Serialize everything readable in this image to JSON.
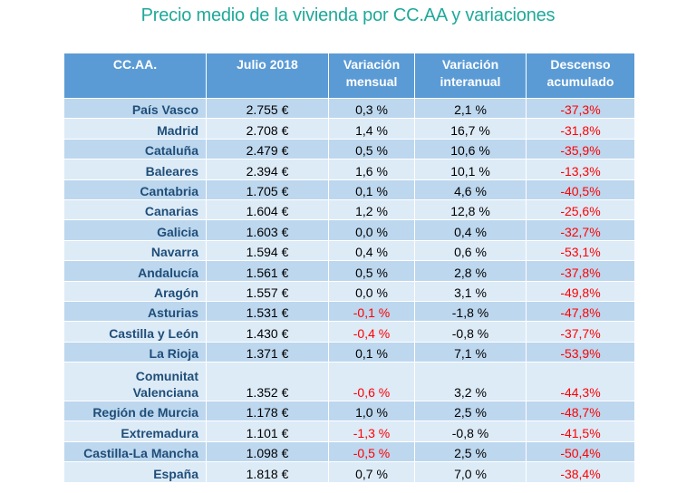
{
  "title": "Precio medio de la vivienda por CC.AA y variaciones",
  "chart_data": {
    "type": "table",
    "columns": [
      "CC.AA.",
      "Julio 2018",
      "Variación mensual",
      "Variación interanual",
      "Descenso acumulado"
    ],
    "rows": [
      {
        "region": "País Vasco",
        "precio": "2.755 €",
        "mensual": "0,3 %",
        "interanual": "2,1 %",
        "descenso": "-37,3%"
      },
      {
        "region": "Madrid",
        "precio": "2.708 €",
        "mensual": "1,4 %",
        "interanual": "16,7 %",
        "descenso": "-31,8%"
      },
      {
        "region": "Cataluña",
        "precio": "2.479 €",
        "mensual": "0,5 %",
        "interanual": "10,6 %",
        "descenso": "-35,9%"
      },
      {
        "region": "Baleares",
        "precio": "2.394 €",
        "mensual": "1,6 %",
        "interanual": "10,1 %",
        "descenso": "-13,3%"
      },
      {
        "region": "Cantabria",
        "precio": "1.705 €",
        "mensual": "0,1 %",
        "interanual": "4,6 %",
        "descenso": "-40,5%"
      },
      {
        "region": "Canarias",
        "precio": "1.604 €",
        "mensual": "1,2 %",
        "interanual": "12,8 %",
        "descenso": "-25,6%"
      },
      {
        "region": "Galicia",
        "precio": "1.603 €",
        "mensual": "0,0 %",
        "interanual": "0,4 %",
        "descenso": "-32,7%"
      },
      {
        "region": "Navarra",
        "precio": "1.594 €",
        "mensual": "0,4 %",
        "interanual": "0,6 %",
        "descenso": "-53,1%"
      },
      {
        "region": "Andalucía",
        "precio": "1.561 €",
        "mensual": "0,5 %",
        "interanual": "2,8 %",
        "descenso": "-37,8%"
      },
      {
        "region": "Aragón",
        "precio": "1.557 €",
        "mensual": "0,0 %",
        "interanual": "3,1 %",
        "descenso": "-49,8%"
      },
      {
        "region": "Asturias",
        "precio": "1.531 €",
        "mensual": "-0,1 %",
        "interanual": "-1,8 %",
        "descenso": "-47,8%"
      },
      {
        "region": "Castilla y León",
        "precio": "1.430 €",
        "mensual": "-0,4 %",
        "interanual": "-0,8 %",
        "descenso": "-37,7%"
      },
      {
        "region": "La Rioja",
        "precio": "1.371 €",
        "mensual": "0,1 %",
        "interanual": "7,1 %",
        "descenso": "-53,9%"
      },
      {
        "region": "Comunitat Valenciana",
        "precio": "1.352 €",
        "mensual": "-0,6 %",
        "interanual": "3,2 %",
        "descenso": "-44,3%"
      },
      {
        "region": "Región de Murcia",
        "precio": "1.178 €",
        "mensual": "1,0 %",
        "interanual": "2,5 %",
        "descenso": "-48,7%"
      },
      {
        "region": "Extremadura",
        "precio": "1.101 €",
        "mensual": "-1,3 %",
        "interanual": "-0,8 %",
        "descenso": "-41,5%"
      },
      {
        "region": "Castilla-La Mancha",
        "precio": "1.098 €",
        "mensual": "-0,5 %",
        "interanual": "2,5 %",
        "descenso": "-50,4%"
      },
      {
        "region": "España",
        "precio": "1.818 €",
        "mensual": "0,7 %",
        "interanual": "7,0 %",
        "descenso": "-38,4%"
      }
    ],
    "colors": {
      "header": "#5b9bd5",
      "row_odd": "#bdd7ee",
      "row_even": "#ddebf7",
      "region_text": "#1f4e79",
      "negative": "#ff0000",
      "title": "#1fa99a"
    }
  }
}
